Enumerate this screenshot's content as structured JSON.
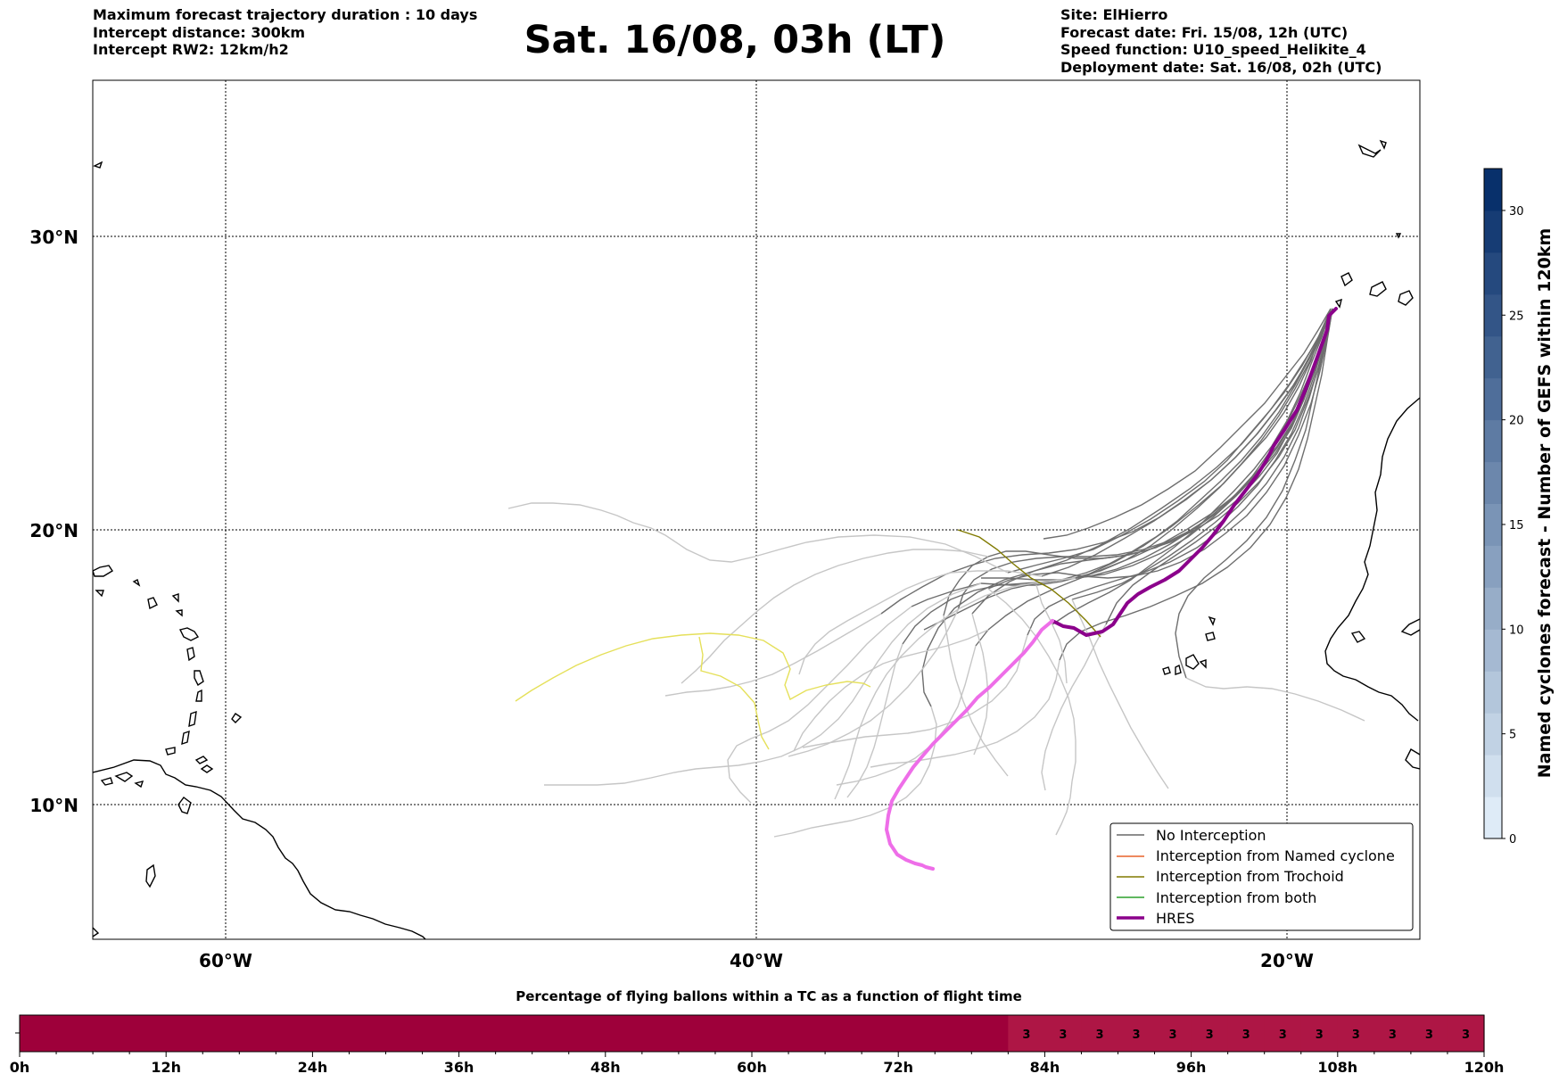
{
  "header": {
    "left_lines": [
      "Maximum forecast trajectory duration : 10 days",
      "Intercept distance: 300km",
      "Intercept RW2: 12km/h2"
    ],
    "title": "Sat. 16/08, 03h (LT)",
    "right_lines": [
      "Site: ElHierro",
      "Forecast date: Fri. 15/08, 12h (UTC)",
      "Speed function: U10_speed_Helikite_4",
      "Deployment date: Sat. 16/08, 02h (UTC)"
    ]
  },
  "map": {
    "lon_range": [
      -65,
      -15
    ],
    "lat_range": [
      5,
      35.5
    ],
    "lat_ticks": [
      "30°N",
      "20°N",
      "10°N"
    ],
    "lon_ticks": [
      "60°W",
      "40°W",
      "20°W"
    ],
    "lat_tick_values": [
      30,
      20,
      10
    ],
    "lon_tick_values": [
      -60,
      -40,
      -20
    ]
  },
  "legend": {
    "items": [
      {
        "label": "No Interception",
        "color": "#696969"
      },
      {
        "label": "Interception from Named cyclone",
        "color": "#e8622a"
      },
      {
        "label": "Interception from Trochoid",
        "color": "#807a00"
      },
      {
        "label": "Interception from both",
        "color": "#2ca02c"
      },
      {
        "label": "HRES",
        "color": "#8b008b"
      }
    ]
  },
  "colorbar": {
    "label": "Named cyclones forecast - Number of GEFS within 120km",
    "ticks": [
      "0",
      "5",
      "10",
      "15",
      "20",
      "25",
      "30"
    ],
    "tick_values": [
      0,
      5,
      10,
      15,
      20,
      25,
      30
    ],
    "max": 32
  },
  "bottom_bar": {
    "title": "Percentage of flying ballons within a TC as a function of flight time",
    "ticks": [
      "0h",
      "12h",
      "24h",
      "36h",
      "48h",
      "60h",
      "72h",
      "84h",
      "96h",
      "108h",
      "120h"
    ],
    "tick_values": [
      0,
      12,
      24,
      36,
      48,
      60,
      72,
      84,
      96,
      108,
      120
    ],
    "cell_hours": 3,
    "cell_values": [
      null,
      null,
      null,
      null,
      null,
      null,
      null,
      null,
      null,
      null,
      null,
      null,
      null,
      null,
      null,
      null,
      null,
      null,
      null,
      null,
      null,
      null,
      null,
      null,
      null,
      null,
      null,
      3,
      3,
      3,
      3,
      3,
      3,
      3,
      3,
      3,
      3,
      3,
      3,
      3
    ],
    "cell_label_text": "3",
    "dark_color": "#9e003a",
    "light_color": "#ae1645"
  }
}
